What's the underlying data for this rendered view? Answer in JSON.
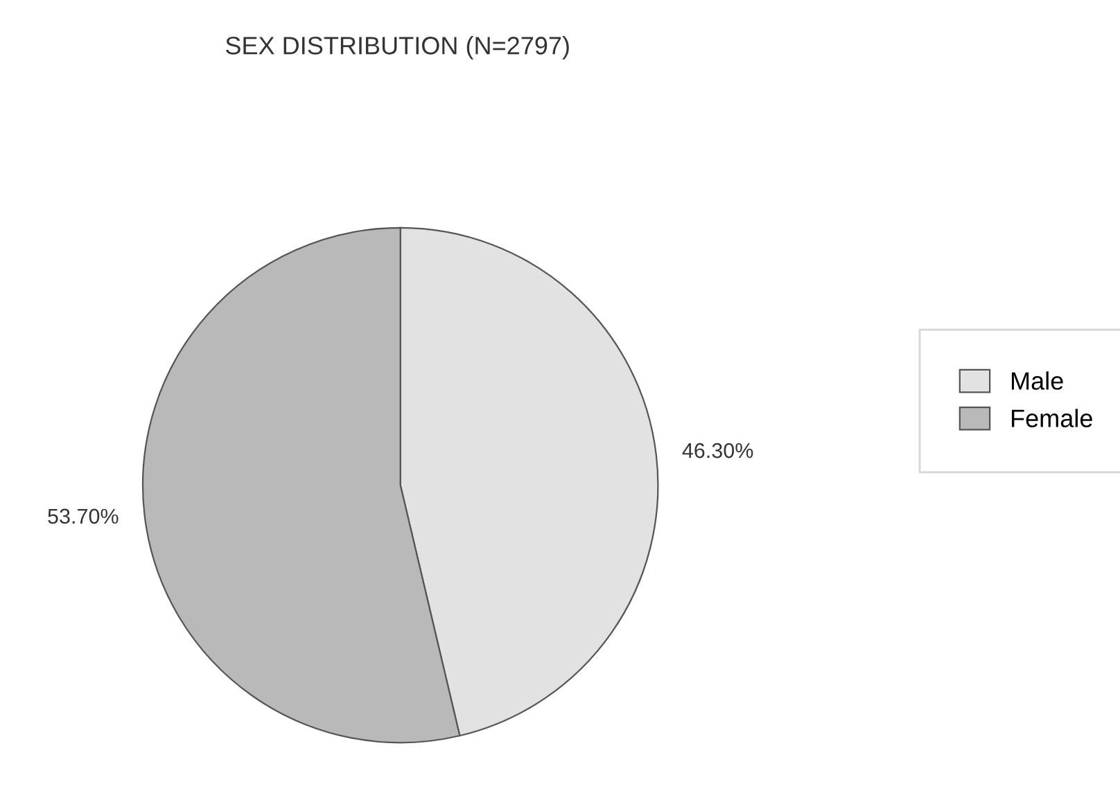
{
  "chart_data": {
    "type": "pie",
    "title": "SEX DISTRIBUTION (N=2797)",
    "categories": [
      "Male",
      "Female"
    ],
    "values": [
      46.3,
      53.7
    ],
    "value_labels": [
      "46.30%",
      "53.70%"
    ],
    "colors": [
      "#e2e2e2",
      "#b9b9b9"
    ],
    "legend": "right"
  }
}
